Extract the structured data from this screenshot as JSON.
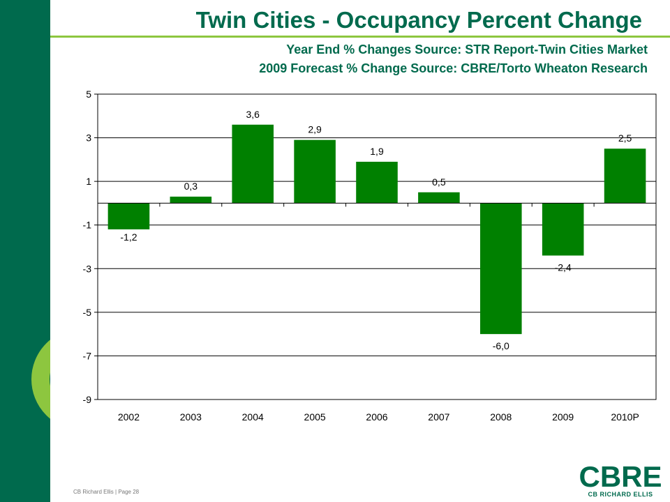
{
  "title": "Twin Cities - Occupancy Percent Change",
  "subtitle_line1": "Year End % Changes Source: STR Report-Twin Cities Market",
  "subtitle_line2": "2009 Forecast % Change Source: CBRE/Torto Wheaton Research",
  "footer": "CB Richard Ellis | Page 28",
  "logo": {
    "word": "CBRE",
    "tagline": "CB RICHARD ELLIS"
  },
  "colors": {
    "bar": "#008000",
    "brand_green": "#006a4d",
    "accent_green": "#8dc63f"
  },
  "chart_data": {
    "type": "bar",
    "categories": [
      "2002",
      "2003",
      "2004",
      "2005",
      "2006",
      "2007",
      "2008",
      "2009",
      "2010P"
    ],
    "values": [
      -1.2,
      0.3,
      3.6,
      2.9,
      1.9,
      0.5,
      -6.0,
      -2.4,
      2.5
    ],
    "data_labels": [
      "-1,2",
      "0,3",
      "3,6",
      "2,9",
      "1,9",
      "0,5",
      "-6,0",
      "-2,4",
      "2,5"
    ],
    "ylim": [
      -9,
      5
    ],
    "yticks": [
      5,
      3,
      1,
      -1,
      -3,
      -5,
      -7,
      -9
    ],
    "grid": true,
    "xlabel": "",
    "ylabel": ""
  }
}
